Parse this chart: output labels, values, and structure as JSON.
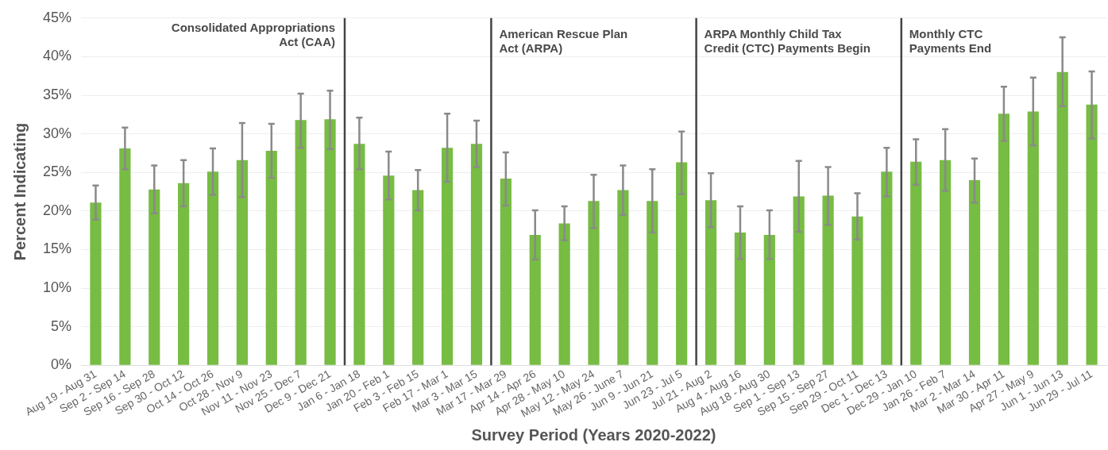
{
  "chart_data": {
    "type": "bar",
    "xlabel": "Survey Period (Years 2020-2022)",
    "ylabel": "Percent Indicating",
    "categories": [
      "Aug 19 - Aug 31",
      "Sep 2 - Sep 14",
      "Sep 16 - Sep 28",
      "Sep 30 - Oct 12",
      "Oct 14 - Oct 26",
      "Oct 28 - Nov 9",
      "Nov 11 - Nov 23",
      "Nov 25 - Dec 7",
      "Dec 9 - Dec 21",
      "Jan 6 - Jan 18",
      "Jan 20 - Feb 1",
      "Feb 3 - Feb 15",
      "Feb 17 - Mar 1",
      "Mar 3 - Mar 15",
      "Mar 17 - Mar 29",
      "Apr 14 - Apr 26",
      "Apr 28 - May 10",
      "May 12 - May 24",
      "May 26 - June 7",
      "Jun 9 - Jun 21",
      "Jun 23 - Jul 5",
      "Jul 21 - Aug 2",
      "Aug 4 - Aug 16",
      "Aug 18 - Aug 30",
      "Sep 1 - Sep 13",
      "Sep 15 - Sep 27",
      "Sep 29 - Oct 11",
      "Dec 1 - Dec 13",
      "Dec 29 - Jan 10",
      "Jan 26 - Feb 7",
      "Mar 2 - Mar 14",
      "Mar 30 - Apr 11",
      "Apr 27 - May 9",
      "Jun 1 - Jun 13",
      "Jun 29 - Jul 11"
    ],
    "values": [
      21.1,
      28.1,
      22.8,
      23.6,
      25.1,
      26.6,
      27.8,
      31.8,
      31.9,
      28.7,
      24.6,
      22.7,
      28.2,
      28.7,
      24.2,
      16.9,
      18.4,
      21.3,
      22.7,
      21.3,
      26.3,
      21.4,
      17.2,
      16.9,
      21.9,
      22.0,
      19.3,
      25.1,
      26.4,
      26.6,
      24.0,
      32.6,
      32.9,
      38.0,
      33.8
    ],
    "errors": [
      [
        18.9,
        23.3
      ],
      [
        25.4,
        30.8
      ],
      [
        19.7,
        25.9
      ],
      [
        20.6,
        26.6
      ],
      [
        22.1,
        28.1
      ],
      [
        21.8,
        31.4
      ],
      [
        24.3,
        31.3
      ],
      [
        28.2,
        35.2
      ],
      [
        28.0,
        35.6
      ],
      [
        25.4,
        32.1
      ],
      [
        21.5,
        27.7
      ],
      [
        20.1,
        25.3
      ],
      [
        23.8,
        32.6
      ],
      [
        25.7,
        31.7
      ],
      [
        20.7,
        27.6
      ],
      [
        13.7,
        20.1
      ],
      [
        16.2,
        20.6
      ],
      [
        17.8,
        24.7
      ],
      [
        19.5,
        25.9
      ],
      [
        17.2,
        25.4
      ],
      [
        22.2,
        30.3
      ],
      [
        17.9,
        24.9
      ],
      [
        13.8,
        20.6
      ],
      [
        13.8,
        20.1
      ],
      [
        17.3,
        26.5
      ],
      [
        18.2,
        25.7
      ],
      [
        16.3,
        22.3
      ],
      [
        21.9,
        28.2
      ],
      [
        23.4,
        29.3
      ],
      [
        22.6,
        30.6
      ],
      [
        21.1,
        26.8
      ],
      [
        29.1,
        36.1
      ],
      [
        28.5,
        37.3
      ],
      [
        33.6,
        42.5
      ],
      [
        29.4,
        38.1
      ]
    ],
    "color": "#77bc43",
    "ylim": [
      0,
      45
    ],
    "yticks": [
      {
        "value": 0,
        "label": "0%"
      },
      {
        "value": 5,
        "label": "5%"
      },
      {
        "value": 10,
        "label": "10%"
      },
      {
        "value": 15,
        "label": "15%"
      },
      {
        "value": 20,
        "label": "20%"
      },
      {
        "value": 25,
        "label": "25%"
      },
      {
        "value": 30,
        "label": "30%"
      },
      {
        "value": 35,
        "label": "35%"
      },
      {
        "value": 40,
        "label": "40%"
      },
      {
        "value": 45,
        "label": "45%"
      }
    ],
    "grid": "y",
    "legend": false,
    "annotations": [
      "Consolidated Appropriations\nAct (CAA)",
      "American Rescue Plan\nAct (ARPA)",
      "ARPA Monthly Child Tax\nCredit (CTC) Payments Begin",
      "Monthly CTC\nPayments End"
    ]
  }
}
